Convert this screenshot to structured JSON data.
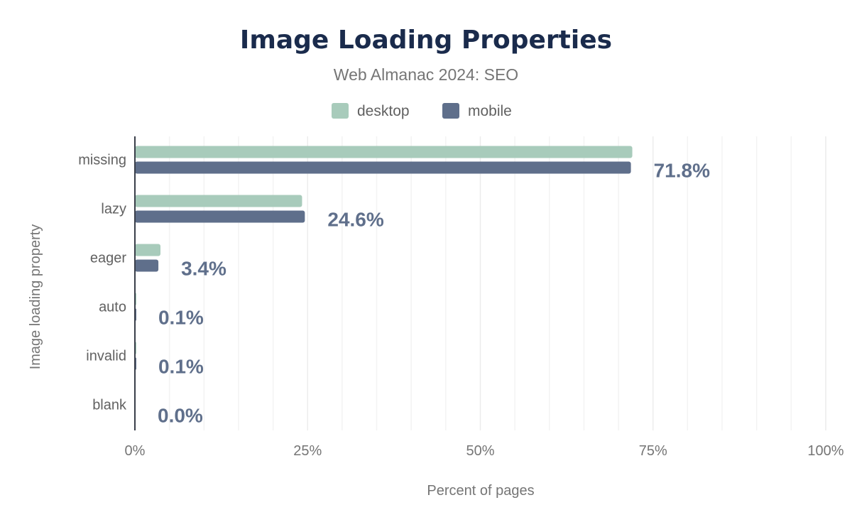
{
  "chart_data": {
    "type": "bar",
    "orientation": "horizontal",
    "title": "Image Loading Properties",
    "subtitle": "Web Almanac 2024: SEO",
    "xlabel": "Percent of pages",
    "ylabel": "Image loading property",
    "xlim": [
      0,
      100
    ],
    "xticks": [
      "0%",
      "25%",
      "50%",
      "75%",
      "100%"
    ],
    "grid": true,
    "legend_position": "top",
    "categories": [
      "missing",
      "lazy",
      "eager",
      "auto",
      "invalid",
      "blank"
    ],
    "series": [
      {
        "name": "desktop",
        "color": "#a8cbbb",
        "values": [
          72.0,
          24.2,
          3.7,
          0.1,
          0.1,
          0.0
        ]
      },
      {
        "name": "mobile",
        "color": "#5f6f8b",
        "values": [
          71.8,
          24.6,
          3.4,
          0.1,
          0.1,
          0.0
        ]
      }
    ],
    "data_labels": [
      "71.8%",
      "24.6%",
      "3.4%",
      "0.1%",
      "0.1%",
      "0.0%"
    ]
  }
}
